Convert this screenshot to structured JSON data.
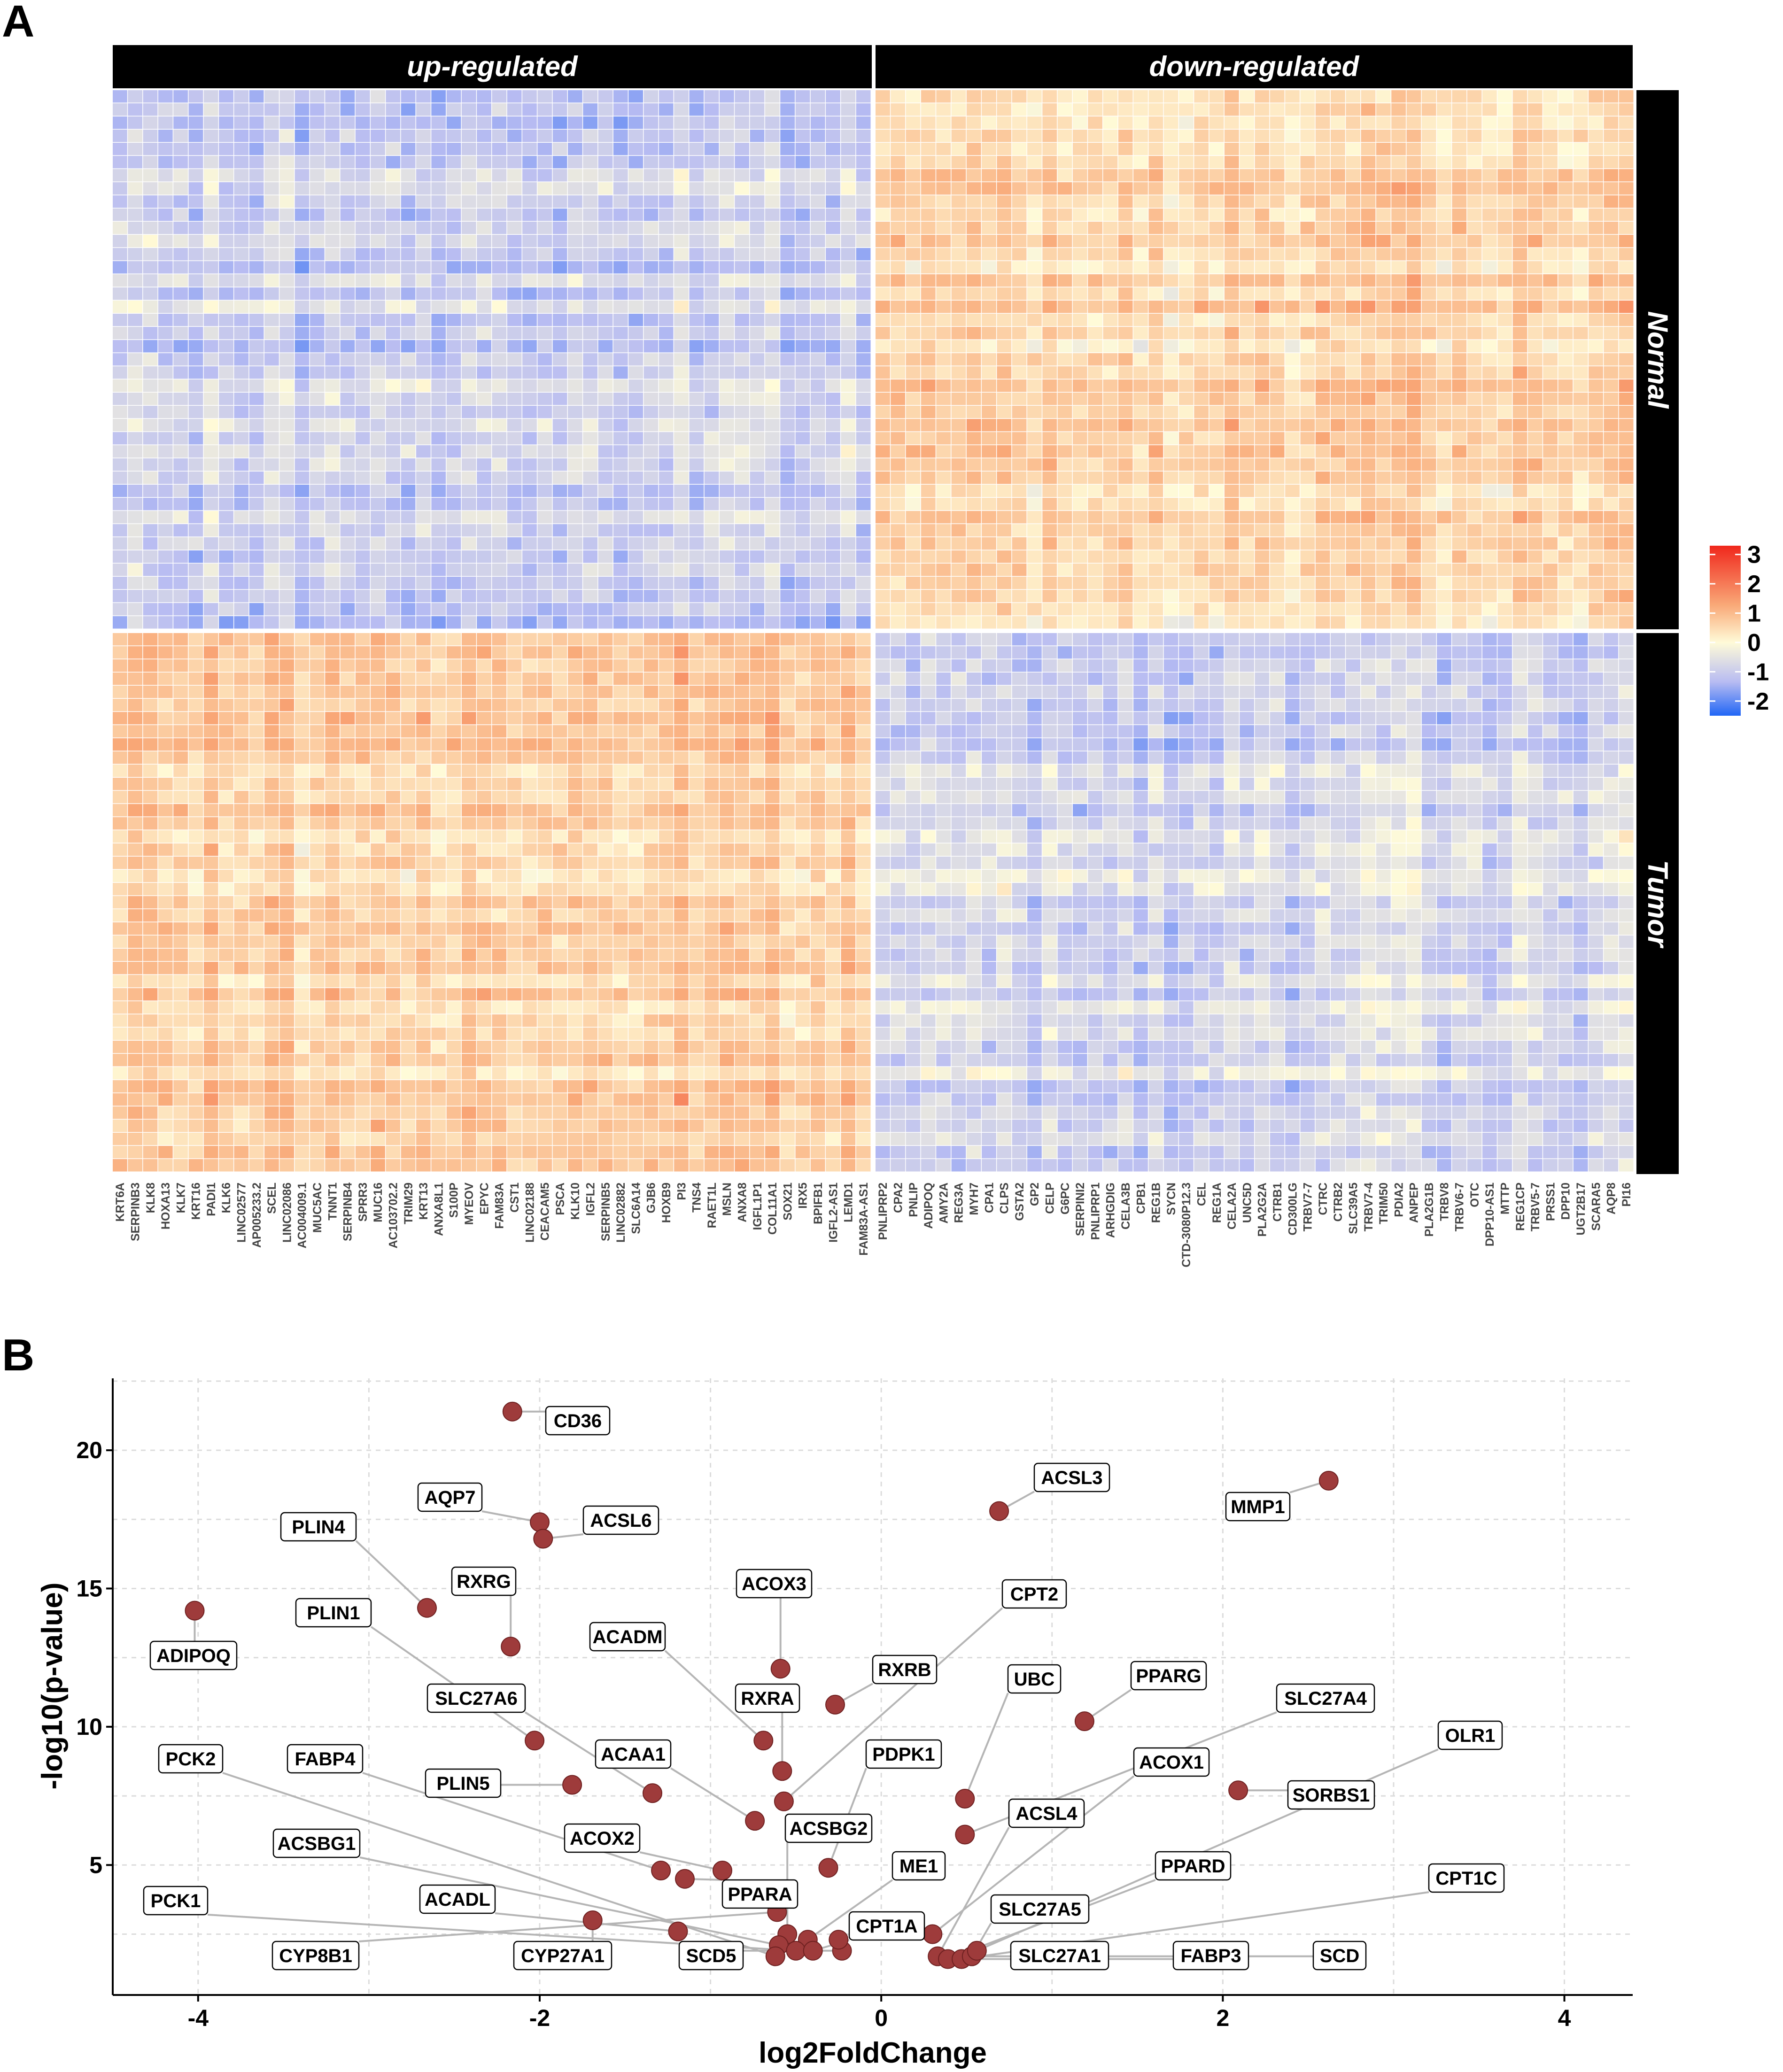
{
  "panels": {
    "a": "A",
    "b": "B"
  },
  "heatmap": {
    "strips_top": [
      "up-regulated",
      "down-regulated"
    ],
    "strips_right": [
      "Normal",
      "Tumor"
    ],
    "n_rows_per_group": 41,
    "up_genes": [
      "KRT6A",
      "SERPINB3",
      "KLK8",
      "HOXA13",
      "KLK7",
      "KRT16",
      "PADI1",
      "KLK6",
      "LINC02577",
      "AP005233.2",
      "SCEL",
      "LINC02086",
      "AC004009.1",
      "MUC5AC",
      "TNNT1",
      "SERPINB4",
      "SPRR3",
      "MUC16",
      "AC103702.2",
      "TRIM29",
      "KRT13",
      "ANXA8L1",
      "S100P",
      "MYEOV",
      "EPYC",
      "FAM83A",
      "CST1",
      "LINC02188",
      "CEACAM5",
      "PSCA",
      "KLK10",
      "IGFL2",
      "SERPINB5",
      "LINC02882",
      "SLC6A14",
      "GJB6",
      "HOXB9",
      "PI3",
      "TNS4",
      "RAET1L",
      "MSLN",
      "ANXA8",
      "IGFL1P1",
      "COL11A1",
      "SOX21",
      "IRX5",
      "BPIFB1",
      "IGFL2-AS1",
      "LEMD1",
      "FAM83A-AS1"
    ],
    "down_genes": [
      "PNLIPRP2",
      "CPA2",
      "PNLIP",
      "ADIPOQ",
      "AMY2A",
      "REG3A",
      "MYH7",
      "CPA1",
      "CLPS",
      "GSTA2",
      "GP2",
      "CELP",
      "G6PC",
      "SERPINI2",
      "PNLIPRP1",
      "ARHGDIG",
      "CELA3B",
      "CPB1",
      "REG1B",
      "SYCN",
      "CTD-3080P12.3",
      "CEL",
      "REG1A",
      "CELA2A",
      "UNC5D",
      "PLA2G2A",
      "CTRB1",
      "CD300LG",
      "TRBV7-7",
      "CTRC",
      "CTRB2",
      "SLC39A5",
      "TRBV7-4",
      "TRIM50",
      "PDIA2",
      "ANPEP",
      "PLA2G1B",
      "TRBV8",
      "TRBV6-7",
      "OTC",
      "DPP10-AS1",
      "MTTP",
      "REG1CP",
      "TRBV5-7",
      "PRSS1",
      "DPP10",
      "UGT2B17",
      "SCARA5",
      "AQP8",
      "PI16"
    ],
    "legend": {
      "ticks": [
        3,
        2,
        1,
        0,
        -1,
        -2
      ],
      "min": -2.5,
      "max": 3.3,
      "low_color": "#2166f5",
      "mid_color": "#fffbd8",
      "high_color": "#f0271c"
    }
  },
  "chart_data": {
    "type": "scatter",
    "title": "",
    "xlabel": "log2FoldChange",
    "ylabel": "-log10(p-value)",
    "xlim": [
      -4.5,
      4.4
    ],
    "ylim": [
      0.3,
      22.6
    ],
    "xticks": [
      -4,
      -2,
      0,
      2,
      4
    ],
    "yticks": [
      5,
      10,
      15,
      20
    ],
    "tick_labels_x": [
      "-4",
      "-2",
      "0",
      "2",
      "4"
    ],
    "tick_labels_y": [
      "5",
      "10",
      "15",
      "20"
    ],
    "points": [
      {
        "x": -2.16,
        "y": 21.4
      },
      {
        "x": -2.0,
        "y": 17.4
      },
      {
        "x": -1.98,
        "y": 16.8
      },
      {
        "x": 0.69,
        "y": 17.8
      },
      {
        "x": 2.62,
        "y": 18.9
      },
      {
        "x": -4.02,
        "y": 14.2
      },
      {
        "x": -2.66,
        "y": 14.3
      },
      {
        "x": -2.17,
        "y": 12.9
      },
      {
        "x": -0.59,
        "y": 12.1
      },
      {
        "x": -0.27,
        "y": 10.8
      },
      {
        "x": 1.19,
        "y": 10.2
      },
      {
        "x": -2.03,
        "y": 9.5
      },
      {
        "x": -0.69,
        "y": 9.5
      },
      {
        "x": -0.58,
        "y": 8.4
      },
      {
        "x": -1.81,
        "y": 7.9
      },
      {
        "x": -1.34,
        "y": 7.6
      },
      {
        "x": -0.57,
        "y": 7.3
      },
      {
        "x": 0.49,
        "y": 7.4
      },
      {
        "x": 2.09,
        "y": 7.7
      },
      {
        "x": -0.74,
        "y": 6.6
      },
      {
        "x": 0.49,
        "y": 6.1
      },
      {
        "x": -1.29,
        "y": 4.8
      },
      {
        "x": -1.15,
        "y": 4.5
      },
      {
        "x": -0.93,
        "y": 4.8
      },
      {
        "x": -0.31,
        "y": 4.9
      },
      {
        "x": -0.61,
        "y": 3.3
      },
      {
        "x": -1.69,
        "y": 3.0
      },
      {
        "x": -1.19,
        "y": 2.6
      },
      {
        "x": -0.55,
        "y": 2.5
      },
      {
        "x": -0.43,
        "y": 2.3
      },
      {
        "x": -0.6,
        "y": 2.1
      },
      {
        "x": -0.5,
        "y": 1.9
      },
      {
        "x": -0.4,
        "y": 1.9
      },
      {
        "x": -0.23,
        "y": 1.9
      },
      {
        "x": -0.62,
        "y": 1.7
      },
      {
        "x": 0.3,
        "y": 2.5
      },
      {
        "x": 0.33,
        "y": 1.7
      },
      {
        "x": 0.39,
        "y": 1.6
      },
      {
        "x": 0.47,
        "y": 1.6
      },
      {
        "x": 0.53,
        "y": 1.7
      },
      {
        "x": 0.56,
        "y": 1.9
      },
      {
        "x": -0.25,
        "y": 2.3
      }
    ],
    "labels": [
      {
        "text": "CD36",
        "gx": -2.16,
        "gy": 21.4
      },
      {
        "text": "AQP7",
        "gx": -2.0,
        "gy": 17.4
      },
      {
        "text": "ACSL6",
        "gx": -1.98,
        "gy": 16.8
      },
      {
        "text": "ACSL3",
        "gx": 0.69,
        "gy": 17.8
      },
      {
        "text": "MMP1",
        "gx": 2.62,
        "gy": 18.9
      },
      {
        "text": "PLIN4",
        "gx": -2.66,
        "gy": 14.3
      },
      {
        "text": "RXRG",
        "gx": -2.17,
        "gy": 12.9
      },
      {
        "text": "ADIPOQ",
        "gx": -4.02,
        "gy": 14.2
      },
      {
        "text": "ACOX3",
        "gx": -0.59,
        "gy": 12.1
      },
      {
        "text": "PLIN1",
        "gx": -2.03,
        "gy": 9.5
      },
      {
        "text": "CPT2",
        "gx": -0.57,
        "gy": 7.3
      },
      {
        "text": "ACADM",
        "gx": -0.69,
        "gy": 9.5
      },
      {
        "text": "RXRB",
        "gx": -0.27,
        "gy": 10.8
      },
      {
        "text": "UBC",
        "gx": 0.49,
        "gy": 7.4
      },
      {
        "text": "PPARG",
        "gx": 1.19,
        "gy": 10.2
      },
      {
        "text": "SLC27A6",
        "gx": -1.34,
        "gy": 7.6
      },
      {
        "text": "RXRA",
        "gx": -0.58,
        "gy": 8.4
      },
      {
        "text": "SLC27A4",
        "gx": 0.49,
        "gy": 6.1
      },
      {
        "text": "OLR1",
        "gx": 0.56,
        "gy": 1.9
      },
      {
        "text": "PCK2",
        "gx": -0.62,
        "gy": 1.7
      },
      {
        "text": "FABP4",
        "gx": -1.29,
        "gy": 4.8
      },
      {
        "text": "ACAA1",
        "gx": -0.74,
        "gy": 6.6
      },
      {
        "text": "PDPK1",
        "gx": -0.31,
        "gy": 4.9
      },
      {
        "text": "ACOX1",
        "gx": 0.3,
        "gy": 2.5
      },
      {
        "text": "PLIN5",
        "gx": -1.81,
        "gy": 7.9
      },
      {
        "text": "SORBS1",
        "gx": 2.09,
        "gy": 7.7
      },
      {
        "text": "ACSBG2",
        "gx": -0.55,
        "gy": 2.5
      },
      {
        "text": "ACSL4",
        "gx": 0.33,
        "gy": 1.7
      },
      {
        "text": "ACSBG1",
        "gx": -0.6,
        "gy": 2.1
      },
      {
        "text": "ACOX2",
        "gx": -0.93,
        "gy": 4.8
      },
      {
        "text": "ME1",
        "gx": -0.43,
        "gy": 2.3
      },
      {
        "text": "PPARD",
        "gx": 0.39,
        "gy": 1.6
      },
      {
        "text": "PPARA",
        "gx": -1.15,
        "gy": 4.5
      },
      {
        "text": "CPT1C",
        "gx": 0.47,
        "gy": 1.6
      },
      {
        "text": "PCK1",
        "gx": -0.5,
        "gy": 1.9
      },
      {
        "text": "ACADL",
        "gx": -1.19,
        "gy": 2.6
      },
      {
        "text": "CPT1A",
        "gx": -0.4,
        "gy": 1.9
      },
      {
        "text": "SLC27A5",
        "gx": 0.53,
        "gy": 1.7
      },
      {
        "text": "CYP8B1",
        "gx": -0.61,
        "gy": 3.3
      },
      {
        "text": "CYP27A1",
        "gx": -1.69,
        "gy": 3.0
      },
      {
        "text": "SCD5",
        "gx": -0.23,
        "gy": 1.9
      },
      {
        "text": "SLC27A1",
        "gx": 0.33,
        "gy": 1.7
      },
      {
        "text": "FABP3",
        "gx": 0.47,
        "gy": 1.6
      },
      {
        "text": "SCD",
        "gx": 0.53,
        "gy": 1.7
      }
    ]
  }
}
